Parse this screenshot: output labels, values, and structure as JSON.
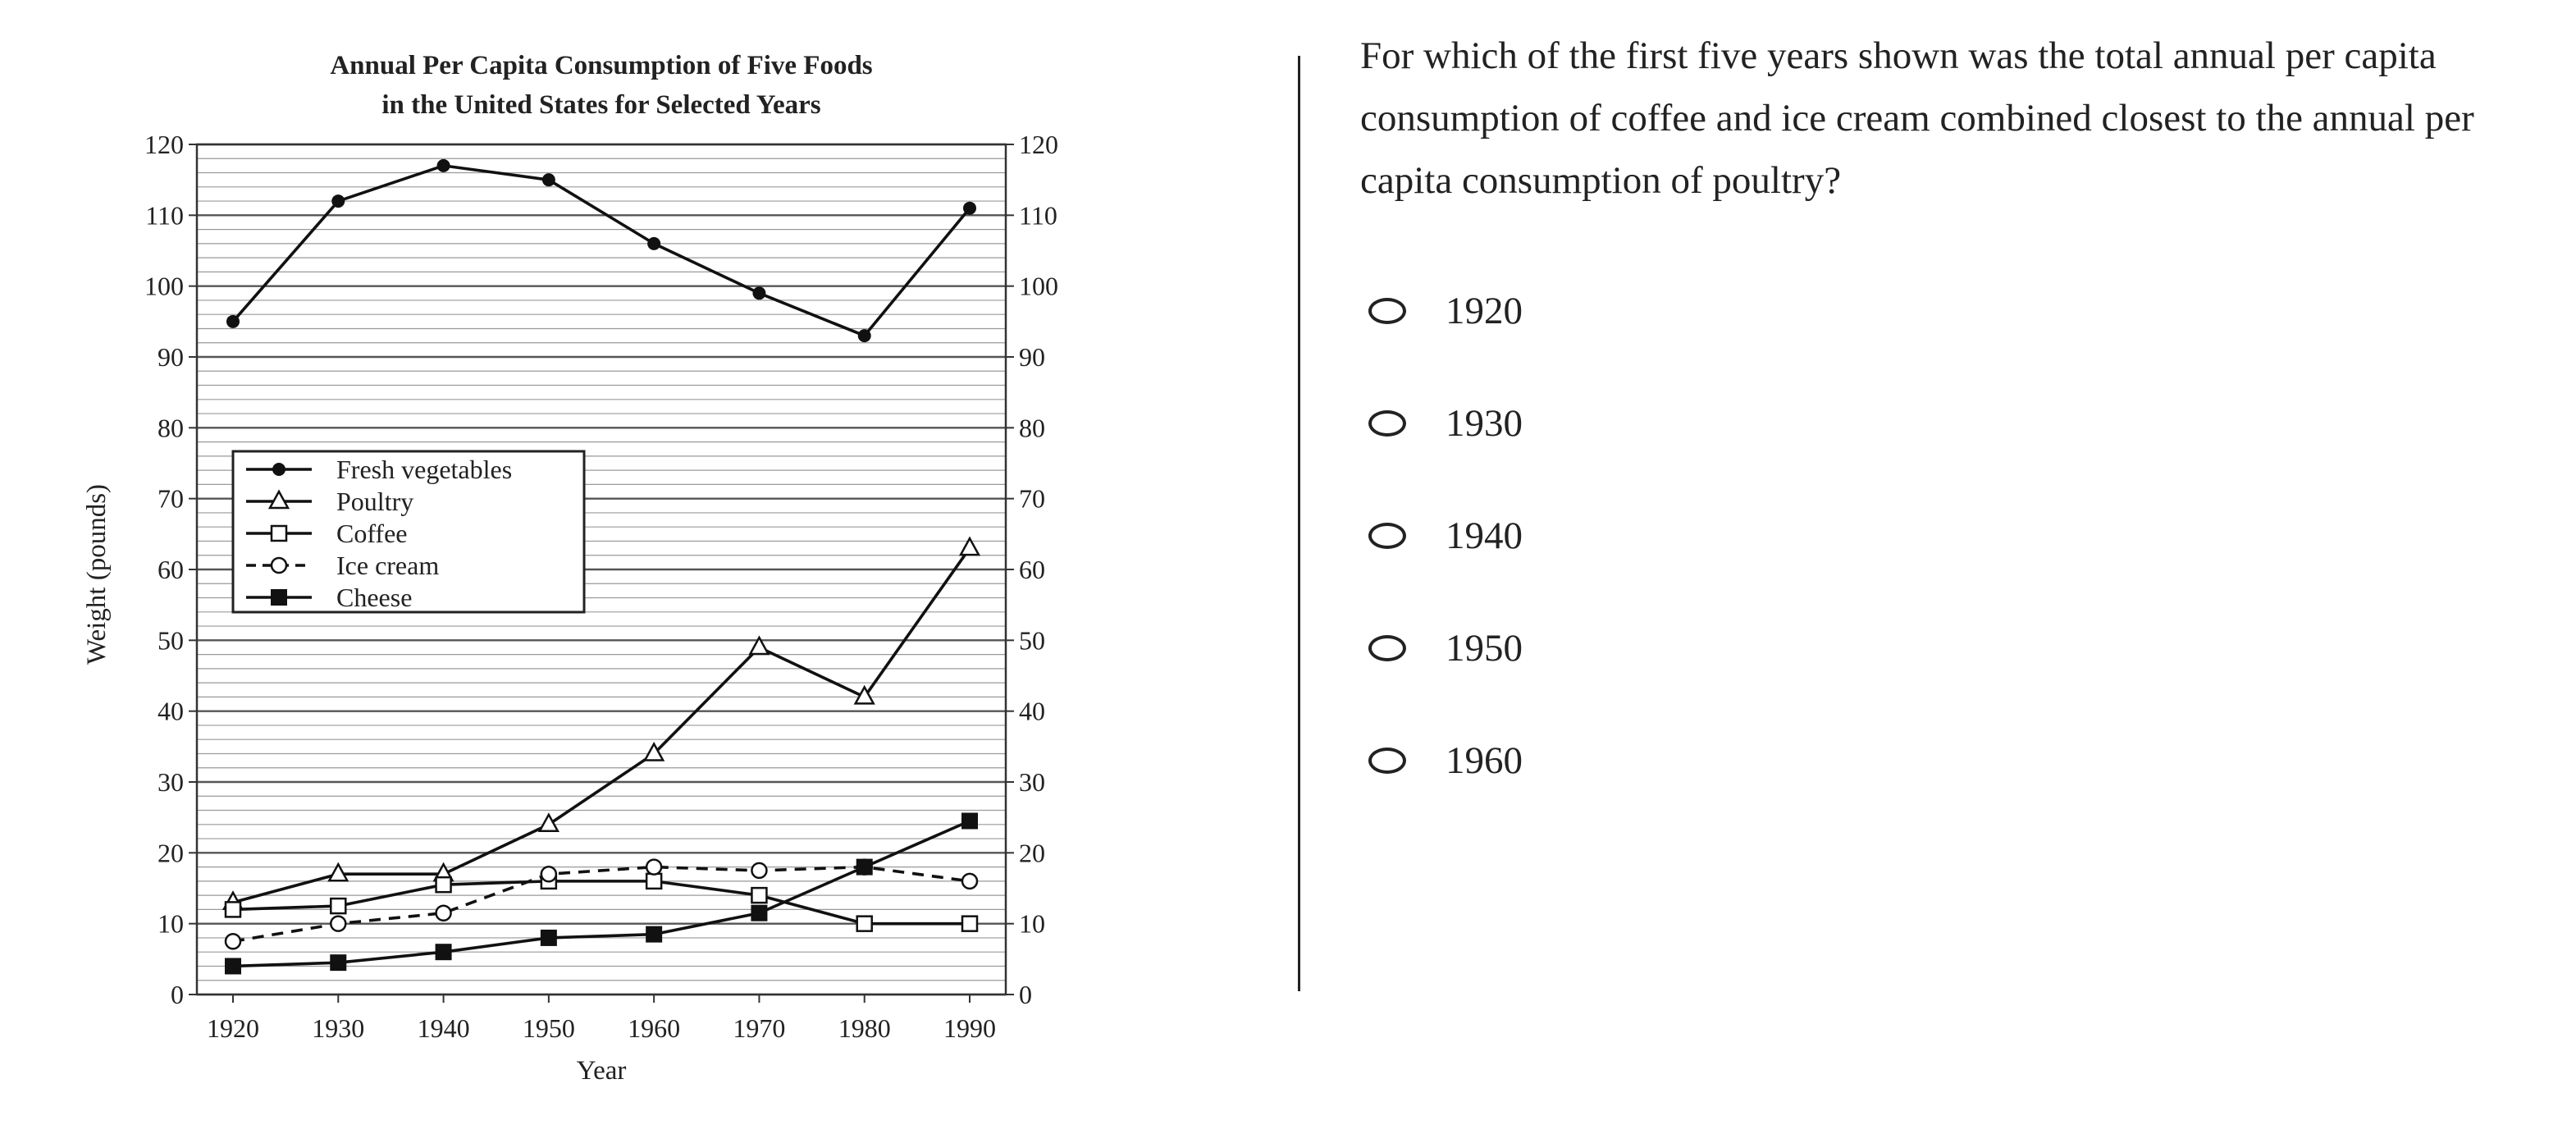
{
  "question": {
    "text": "For which of the first five years shown was the total annual per capita consumption of coffee and ice cream combined closest to the annual per capita consumption of poultry?",
    "choices": [
      "1920",
      "1930",
      "1940",
      "1950",
      "1960"
    ]
  },
  "chart_data": {
    "type": "line",
    "title": "Annual Per Capita Consumption of Five Foods",
    "subtitle": "in the United States for Selected Years",
    "xlabel": "Year",
    "ylabel": "Weight (pounds)",
    "ylim": [
      0,
      120
    ],
    "grid": true,
    "legend_position": "middle-left",
    "x": [
      1920,
      1930,
      1940,
      1950,
      1960,
      1970,
      1980,
      1990
    ],
    "y_ticks": [
      0,
      10,
      20,
      30,
      40,
      50,
      60,
      70,
      80,
      90,
      100,
      110,
      120
    ],
    "series": [
      {
        "name": "Fresh vegetables",
        "marker": "filled-circle",
        "dashed": false,
        "values": [
          95,
          112,
          117,
          115,
          106,
          99,
          93,
          111
        ]
      },
      {
        "name": "Poultry",
        "marker": "triangle",
        "dashed": false,
        "values": [
          13,
          17,
          17,
          24,
          34,
          49,
          42,
          63
        ]
      },
      {
        "name": "Coffee",
        "marker": "open-square",
        "dashed": false,
        "values": [
          12,
          12.5,
          15.5,
          16,
          16,
          14,
          10,
          10
        ]
      },
      {
        "name": "Ice cream",
        "marker": "open-circle",
        "dashed": true,
        "values": [
          7.5,
          10,
          11.5,
          17,
          18,
          17.5,
          18,
          16
        ]
      },
      {
        "name": "Cheese",
        "marker": "filled-square",
        "dashed": false,
        "values": [
          4,
          4.5,
          6,
          8,
          8.5,
          11.5,
          18,
          24.5
        ]
      }
    ]
  }
}
